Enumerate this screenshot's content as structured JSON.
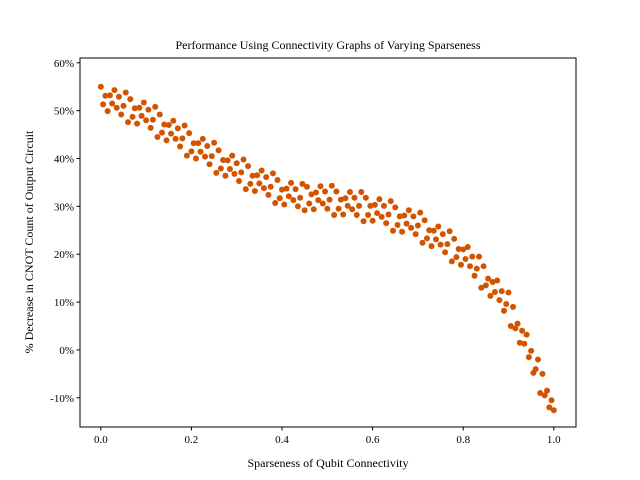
{
  "chart_data": {
    "type": "scatter",
    "title": "Performance Using Connectivity Graphs of Varying Sparseness",
    "xlabel": "Sparseness of Qubit Connectivity",
    "ylabel": "% Decrease in CNOT Count of Output Circuit",
    "color": "#d35400",
    "xlim": [
      -0.046,
      1.049
    ],
    "ylim": [
      -16.1,
      61.0
    ],
    "xticks": [
      {
        "value": 0,
        "label": "0.0"
      },
      0.2,
      0.4,
      0.6,
      0.8,
      {
        "value": 1,
        "label": "1.0"
      }
    ],
    "yticks": [
      {
        "value": -10,
        "label": "-10%"
      },
      {
        "value": 0,
        "label": "0%"
      },
      {
        "value": 10,
        "label": "10%"
      },
      {
        "value": 20,
        "label": "20%"
      },
      {
        "value": 30,
        "label": "30%"
      },
      {
        "value": 40,
        "label": "40%"
      },
      {
        "value": 50,
        "label": "50%"
      },
      {
        "value": 60,
        "label": "60%"
      }
    ],
    "x": [
      0,
      0.005,
      0.01,
      0.015,
      0.02,
      0.025,
      0.03,
      0.035,
      0.04,
      0.045,
      0.05,
      0.055,
      0.06,
      0.065,
      0.07,
      0.075,
      0.08,
      0.085,
      0.09,
      0.095,
      0.1,
      0.105,
      0.11,
      0.115,
      0.12,
      0.125,
      0.13,
      0.135,
      0.14,
      0.145,
      0.15,
      0.155,
      0.16,
      0.165,
      0.17,
      0.175,
      0.18,
      0.185,
      0.19,
      0.195,
      0.2,
      0.205,
      0.21,
      0.215,
      0.22,
      0.225,
      0.23,
      0.235,
      0.24,
      0.245,
      0.25,
      0.255,
      0.26,
      0.265,
      0.27,
      0.275,
      0.28,
      0.285,
      0.29,
      0.295,
      0.3,
      0.305,
      0.31,
      0.315,
      0.32,
      0.325,
      0.33,
      0.335,
      0.34,
      0.345,
      0.35,
      0.355,
      0.36,
      0.365,
      0.37,
      0.375,
      0.38,
      0.385,
      0.39,
      0.395,
      0.4,
      0.405,
      0.41,
      0.415,
      0.42,
      0.425,
      0.43,
      0.435,
      0.44,
      0.445,
      0.45,
      0.455,
      0.46,
      0.465,
      0.47,
      0.475,
      0.48,
      0.485,
      0.49,
      0.495,
      0.5,
      0.505,
      0.51,
      0.515,
      0.52,
      0.525,
      0.53,
      0.535,
      0.54,
      0.545,
      0.55,
      0.555,
      0.56,
      0.565,
      0.57,
      0.575,
      0.58,
      0.585,
      0.59,
      0.595,
      0.6,
      0.605,
      0.61,
      0.615,
      0.62,
      0.625,
      0.63,
      0.635,
      0.64,
      0.645,
      0.65,
      0.655,
      0.66,
      0.665,
      0.67,
      0.675,
      0.68,
      0.685,
      0.69,
      0.695,
      0.7,
      0.705,
      0.71,
      0.715,
      0.72,
      0.725,
      0.73,
      0.735,
      0.74,
      0.745,
      0.75,
      0.755,
      0.76,
      0.765,
      0.77,
      0.775,
      0.78,
      0.785,
      0.79,
      0.795,
      0.8,
      0.805,
      0.81,
      0.815,
      0.82,
      0.825,
      0.83,
      0.835,
      0.84,
      0.845,
      0.85,
      0.855,
      0.86,
      0.865,
      0.87,
      0.875,
      0.88,
      0.885,
      0.89,
      0.895,
      0.9,
      0.905,
      0.91,
      0.915,
      0.92,
      0.925,
      0.93,
      0.935,
      0.94,
      0.945,
      0.95,
      0.955,
      0.96,
      0.965,
      0.97,
      0.975,
      0.98,
      0.985,
      0.99,
      0.995,
      1
    ],
    "values": [
      55,
      51.3,
      53.1,
      49.9,
      53.2,
      51.5,
      54.3,
      50.6,
      52.9,
      49.2,
      51,
      53.8,
      47.6,
      52.4,
      48.7,
      50.5,
      47.3,
      50.6,
      48.9,
      51.7,
      48,
      50.2,
      46.4,
      48.1,
      50.8,
      44.5,
      49.2,
      45.4,
      47.1,
      43.8,
      47,
      45.2,
      47.9,
      44.1,
      46.3,
      42.5,
      44.2,
      46.9,
      40.6,
      45.3,
      41.5,
      43.2,
      40,
      43.2,
      41.4,
      44.1,
      40.4,
      42.6,
      38.8,
      40.5,
      43.3,
      37,
      41.7,
      37.9,
      39.7,
      36.4,
      39.6,
      37.8,
      40.6,
      36.8,
      39,
      35.3,
      37.1,
      39.8,
      33.6,
      38.4,
      34.7,
      36.4,
      33.2,
      36.5,
      34.8,
      37.5,
      33.8,
      36.1,
      32.4,
      34.1,
      36.9,
      30.7,
      35.5,
      31.7,
      33.5,
      30.4,
      33.7,
      32.1,
      34.9,
      31.3,
      33.6,
      30,
      31.8,
      34.7,
      29.2,
      34.1,
      30.6,
      32.5,
      29.4,
      32.9,
      31.3,
      34.2,
      30.6,
      33.1,
      29.5,
      31.4,
      34.3,
      28.2,
      33.1,
      29.5,
      31.4,
      28.3,
      31.7,
      30.1,
      33,
      29.4,
      31.8,
      28.2,
      30.1,
      33,
      26.9,
      31.8,
      28.2,
      30.1,
      27,
      30.3,
      28.6,
      31.5,
      27.8,
      30.1,
      26.5,
      28.3,
      31.1,
      24.9,
      29.8,
      26.1,
      27.9,
      24.7,
      28.1,
      26.4,
      29.2,
      25.5,
      27.9,
      24.2,
      26,
      28.7,
      22.4,
      27.1,
      23.3,
      25,
      21.7,
      24.9,
      23.1,
      25.8,
      22,
      24.2,
      20.4,
      22.1,
      24.8,
      18.5,
      23.2,
      19.4,
      21.1,
      17.8,
      21,
      19,
      21.5,
      17.5,
      19.5,
      15.5,
      17,
      19.5,
      13,
      17.5,
      13.5,
      14.9,
      11.3,
      14.2,
      12.1,
      14.5,
      10.4,
      12.3,
      8.2,
      9.6,
      12,
      5,
      9,
      4.5,
      5.5,
      1.5,
      4,
      1.3,
      3.2,
      -1.5,
      -0.2,
      -4.8,
      -4,
      -2,
      -9,
      -5,
      -9.5,
      -8.5,
      -12,
      -10.5,
      -12.6
    ]
  }
}
